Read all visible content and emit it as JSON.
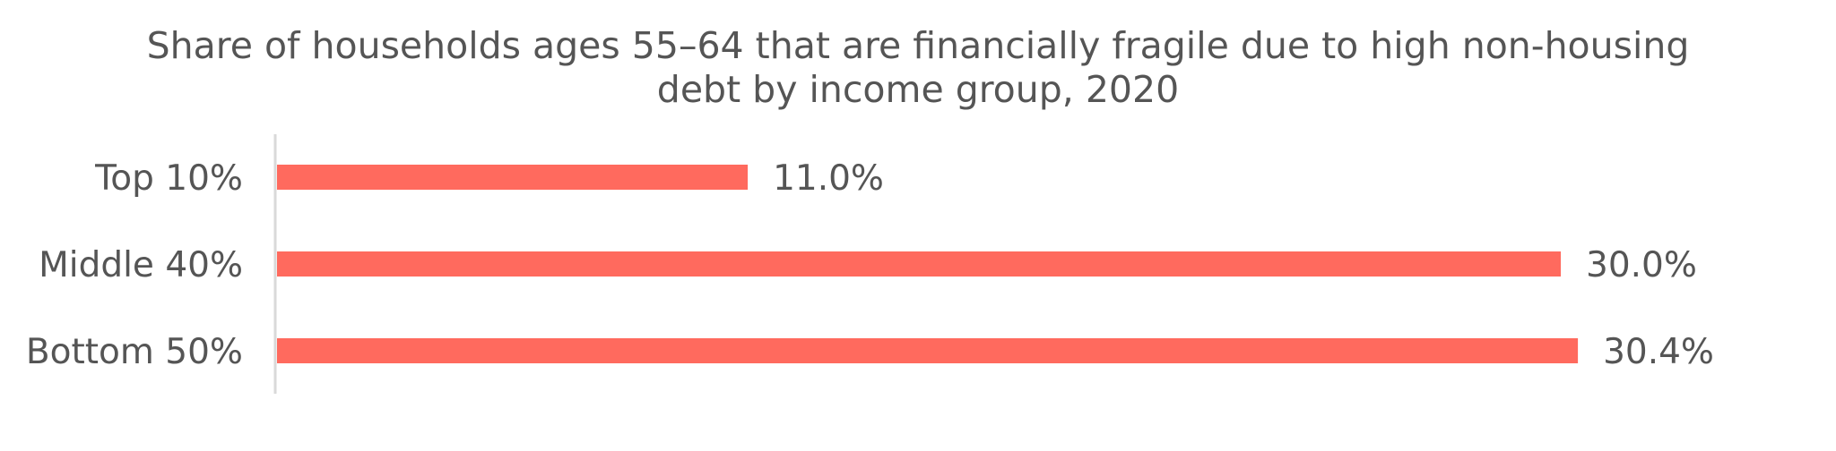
{
  "chart_data": {
    "type": "bar",
    "orientation": "horizontal",
    "title": "Share of households ages 55–64 that are financially fragile due to high non-housing debt by income group, 2020",
    "title_lines": [
      "Share of households ages 55–64 that are financially fragile due to high non-housing",
      "debt by income group, 2020"
    ],
    "categories": [
      "Top 10%",
      "Middle 40%",
      "Bottom 50%"
    ],
    "values": [
      11.0,
      30.0,
      30.4
    ],
    "data_labels": [
      "11.0%",
      "30.0%",
      "30.4%"
    ],
    "xlabel": "",
    "ylabel": "",
    "xlim": [
      0,
      31
    ],
    "grid": false,
    "legend": "none",
    "bar_color": "#ff6a5e",
    "text_color": "#555555",
    "axis_color": "#d9d9d9"
  }
}
